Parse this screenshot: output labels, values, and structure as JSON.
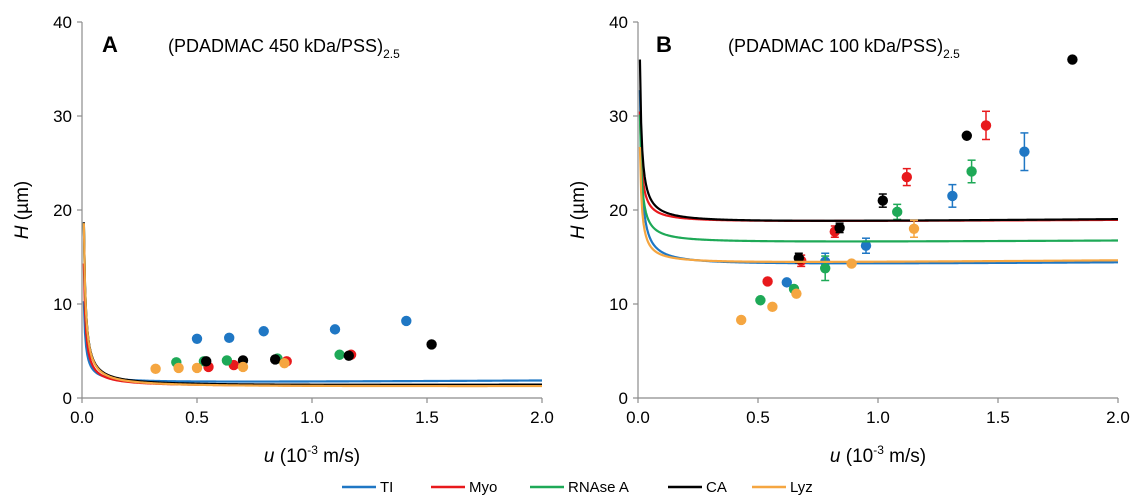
{
  "legend": [
    {
      "name": "TI",
      "color": "#1f77c4"
    },
    {
      "name": "Myo",
      "color": "#e8191c"
    },
    {
      "name": "RNAse A",
      "color": "#1ea957"
    },
    {
      "name": "CA",
      "color": "#000000"
    },
    {
      "name": "Lyz",
      "color": "#f5a641"
    }
  ],
  "chart_data": [
    {
      "type": "line",
      "panel_label": "A",
      "title_main": "(PDADMAC 450 kDa/PSS)",
      "title_sub": "2.5",
      "xlabel_var": "u",
      "xlabel_pre": " (10",
      "xlabel_sup": "-3",
      "xlabel_post": " m/s)",
      "ylabel_var": "H",
      "ylabel_post": " (µm)",
      "xlim": [
        0,
        2
      ],
      "ylim": [
        0,
        40
      ],
      "xticks": [
        "0.0",
        "0.5",
        "1.0",
        "1.5",
        "2.0"
      ],
      "yticks": [
        "0",
        "10",
        "20",
        "30",
        "40"
      ],
      "series": [
        {
          "name": "TI",
          "color": "#1f77c4",
          "x": [
            0.5,
            0.64,
            0.79,
            1.1,
            1.41
          ],
          "y": [
            6.3,
            6.4,
            7.1,
            7.3,
            8.2
          ],
          "err": [
            0,
            0,
            0,
            0,
            0
          ],
          "fit": {
            "A": 0.07,
            "B": 0.14,
            "C": 1.55
          }
        },
        {
          "name": "Myo",
          "color": "#e8191c",
          "x": [
            0.55,
            0.66,
            0.89,
            1.17
          ],
          "y": [
            3.3,
            3.5,
            3.9,
            4.6
          ],
          "err": [
            0,
            0,
            0,
            0
          ],
          "fit": {
            "A": 0.105,
            "B": 0.038,
            "C": 1.18
          }
        },
        {
          "name": "RNAse A",
          "color": "#1ea957",
          "x": [
            0.41,
            0.53,
            0.63,
            0.85,
            1.12
          ],
          "y": [
            3.8,
            3.9,
            4.0,
            4.2,
            4.6
          ],
          "err": [
            0,
            0,
            0,
            0,
            0
          ],
          "fit": {
            "A": 0.14,
            "B": 0.073,
            "C": 1.15
          }
        },
        {
          "name": "CA",
          "color": "#000000",
          "x": [
            0.54,
            0.7,
            0.84,
            1.16,
            1.52
          ],
          "y": [
            3.9,
            4.0,
            4.1,
            4.5,
            5.7
          ],
          "err": [
            0,
            0,
            0,
            0,
            0
          ],
          "fit": {
            "A": 0.14,
            "B": 0.078,
            "C": 1.2
          }
        },
        {
          "name": "Lyz",
          "color": "#f5a641",
          "x": [
            0.32,
            0.42,
            0.5,
            0.7,
            0.88
          ],
          "y": [
            3.1,
            3.2,
            3.2,
            3.3,
            3.7
          ],
          "err": [
            0,
            0,
            0,
            0,
            0
          ],
          "fit": {
            "A": 0.14,
            "B": 0.05,
            "C": 1.1
          }
        }
      ]
    },
    {
      "type": "line",
      "panel_label": "B",
      "title_main": "(PDADMAC 100 kDa/PSS)",
      "title_sub": "2.5",
      "xlabel_var": "u",
      "xlabel_pre": " (10",
      "xlabel_sup": "-3",
      "xlabel_post": " m/s)",
      "ylabel_var": "H",
      "ylabel_post": " (µm)",
      "xlim": [
        0,
        2
      ],
      "ylim": [
        0,
        40
      ],
      "xticks": [
        "0.0",
        "0.5",
        "1.0",
        "1.5",
        "2.0"
      ],
      "yticks": [
        "0",
        "10",
        "20",
        "30",
        "40"
      ],
      "series": [
        {
          "name": "TI",
          "color": "#1f77c4",
          "x": [
            0.62,
            0.78,
            0.95,
            1.31,
            1.61
          ],
          "y": [
            12.3,
            14.5,
            16.2,
            21.5,
            26.2
          ],
          "err": [
            0,
            0.9,
            0.8,
            1.2,
            2.0
          ],
          "fit": {
            "A": 0.15,
            "B": 0.18,
            "C": 14.0
          }
        },
        {
          "name": "Myo",
          "color": "#e8191c",
          "x": [
            0.54,
            0.68,
            0.82,
            1.12,
            1.45
          ],
          "y": [
            12.4,
            14.6,
            17.7,
            23.5,
            29.0
          ],
          "err": [
            0,
            0.6,
            0.6,
            0.9,
            1.5
          ],
          "fit": {
            "A": 0.095,
            "B": 0.15,
            "C": 18.6
          }
        },
        {
          "name": "RNAse A",
          "color": "#1ea957",
          "x": [
            0.51,
            0.65,
            0.78,
            1.08,
            1.39
          ],
          "y": [
            10.4,
            11.6,
            13.8,
            19.8,
            24.1
          ],
          "err": [
            0,
            0,
            1.3,
            0.8,
            1.2
          ],
          "fit": {
            "A": 0.11,
            "B": 0.15,
            "C": 16.4
          }
        },
        {
          "name": "CA",
          "color": "#000000",
          "x": [
            0.67,
            0.84,
            1.02,
            1.37,
            1.81
          ],
          "y": [
            14.9,
            18.1,
            21.0,
            27.9,
            36.0
          ],
          "err": [
            0.5,
            0.5,
            0.7,
            0,
            0
          ],
          "fit": {
            "A": 0.14,
            "B": 0.23,
            "C": 18.5
          }
        },
        {
          "name": "Lyz",
          "color": "#f5a641",
          "x": [
            0.43,
            0.56,
            0.66,
            0.89,
            1.15
          ],
          "y": [
            8.3,
            9.7,
            11.1,
            14.3,
            18.0
          ],
          "err": [
            0,
            0,
            0,
            0,
            0.9
          ],
          "fit": {
            "A": 0.1,
            "B": 0.2,
            "C": 14.2
          }
        }
      ]
    }
  ]
}
